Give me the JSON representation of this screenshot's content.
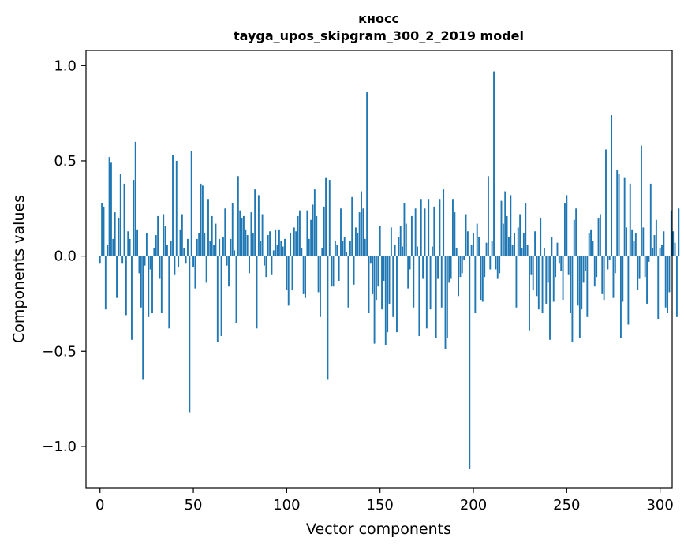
{
  "chart_data": {
    "type": "bar",
    "title": "кносс",
    "subtitle": "tayga_upos_skipgram_300_2_2019 model",
    "xlabel": "Vector components",
    "ylabel": "Components values",
    "xlim": [
      -7.5,
      306.5
    ],
    "ylim": [
      -1.22,
      1.08
    ],
    "xticks": [
      0,
      50,
      100,
      150,
      200,
      250,
      300
    ],
    "xtick_labels": [
      "0",
      "50",
      "100",
      "150",
      "200",
      "250",
      "300"
    ],
    "yticks": [
      1.0,
      0.5,
      0.0,
      -0.5,
      -1.0
    ],
    "ytick_labels": [
      "1.0",
      "0.5",
      "0.0",
      "−0.5",
      "−1.0"
    ],
    "bar_color": "#1f77b4",
    "grid": false,
    "values": [
      -0.04,
      0.28,
      0.26,
      -0.28,
      0.06,
      0.52,
      0.49,
      0.09,
      0.23,
      -0.22,
      0.2,
      0.43,
      -0.04,
      0.38,
      -0.31,
      0.13,
      0.09,
      -0.44,
      0.4,
      0.6,
      0.14,
      -0.09,
      -0.27,
      -0.65,
      -0.05,
      0.12,
      -0.32,
      -0.07,
      -0.3,
      0.04,
      0.11,
      0.21,
      -0.12,
      -0.3,
      0.22,
      0.16,
      0.06,
      -0.38,
      0.08,
      0.53,
      -0.1,
      0.5,
      -0.06,
      0.14,
      0.22,
      0.04,
      -0.04,
      0.09,
      -0.82,
      0.55,
      -0.06,
      -0.17,
      0.09,
      0.12,
      0.38,
      0.37,
      0.12,
      -0.14,
      0.3,
      0.08,
      0.21,
      0.06,
      0.17,
      -0.45,
      0.09,
      -0.42,
      0.1,
      0.25,
      -0.05,
      -0.16,
      0.09,
      0.28,
      0.03,
      -0.35,
      0.42,
      0.24,
      0.2,
      0.21,
      0.14,
      0.11,
      -0.09,
      0.23,
      0.12,
      0.35,
      -0.38,
      0.32,
      0.08,
      0.22,
      -0.05,
      -0.11,
      0.11,
      0.13,
      -0.1,
      0.03,
      0.14,
      0.06,
      0.14,
      0.08,
      0.05,
      0.09,
      -0.18,
      -0.26,
      0.12,
      -0.18,
      0.15,
      0.13,
      0.21,
      0.24,
      0.04,
      -0.2,
      -0.22,
      0.24,
      0.09,
      0.19,
      0.27,
      0.35,
      0.21,
      -0.19,
      -0.32,
      0.04,
      0.26,
      0.41,
      -0.65,
      0.4,
      -0.16,
      -0.16,
      0.08,
      0.06,
      -0.13,
      0.25,
      0.08,
      0.1,
      0.02,
      -0.27,
      0.08,
      0.31,
      -0.15,
      0.15,
      0.12,
      0.23,
      0.34,
      0.25,
      0.09,
      0.86,
      -0.3,
      -0.04,
      -0.2,
      -0.46,
      -0.23,
      -0.16,
      0.16,
      -0.28,
      -0.13,
      -0.47,
      -0.4,
      -0.25,
      0.15,
      -0.32,
      0.06,
      -0.4,
      0.1,
      0.16,
      0.05,
      0.28,
      0.17,
      -0.17,
      -0.07,
      0.21,
      -0.27,
      0.25,
      0.05,
      -0.42,
      0.3,
      -0.12,
      0.25,
      -0.38,
      0.3,
      -0.28,
      0.05,
      0.26,
      -0.43,
      -0.12,
      0.3,
      -0.27,
      0.35,
      -0.49,
      -0.43,
      -0.14,
      -0.12,
      0.3,
      0.23,
      0.04,
      -0.21,
      -0.11,
      -0.09,
      -0.02,
      0.22,
      0.13,
      -1.12,
      0.06,
      0.12,
      -0.3,
      0.17,
      0.1,
      -0.23,
      -0.24,
      -0.11,
      0.07,
      0.42,
      -0.07,
      0.08,
      0.97,
      -0.07,
      -0.12,
      -0.09,
      0.29,
      0.17,
      0.34,
      0.21,
      0.1,
      0.32,
      0.06,
      0.12,
      -0.27,
      0.15,
      0.22,
      0.04,
      0.12,
      0.28,
      0.06,
      -0.39,
      -0.1,
      -0.18,
      0.13,
      -0.21,
      -0.28,
      0.2,
      -0.3,
      0.04,
      -0.25,
      -0.14,
      -0.44,
      0.1,
      -0.24,
      -0.11,
      0.07,
      -0.04,
      -0.08,
      -0.23,
      0.28,
      0.32,
      -0.1,
      -0.3,
      -0.45,
      0.19,
      0.25,
      -0.26,
      -0.43,
      -0.28,
      -0.14,
      -0.08,
      -0.32,
      0.12,
      0.14,
      0.08,
      -0.16,
      -0.11,
      0.2,
      0.22,
      -0.2,
      -0.23,
      0.56,
      -0.07,
      -0.02,
      0.74,
      -0.22,
      -0.09,
      0.45,
      0.43,
      -0.43,
      -0.24,
      0.41,
      0.15,
      -0.36,
      0.38,
      0.14,
      0.08,
      0.12,
      -0.18,
      -0.12,
      0.58,
      0.15,
      -0.11,
      -0.25,
      -0.03,
      0.38,
      0.04,
      0.11,
      0.19,
      -0.33,
      0.04,
      0.06,
      0.13,
      -0.27,
      -0.3,
      -0.19,
      0.24,
      0.13,
      0.07,
      -0.32,
      0.25
    ]
  }
}
